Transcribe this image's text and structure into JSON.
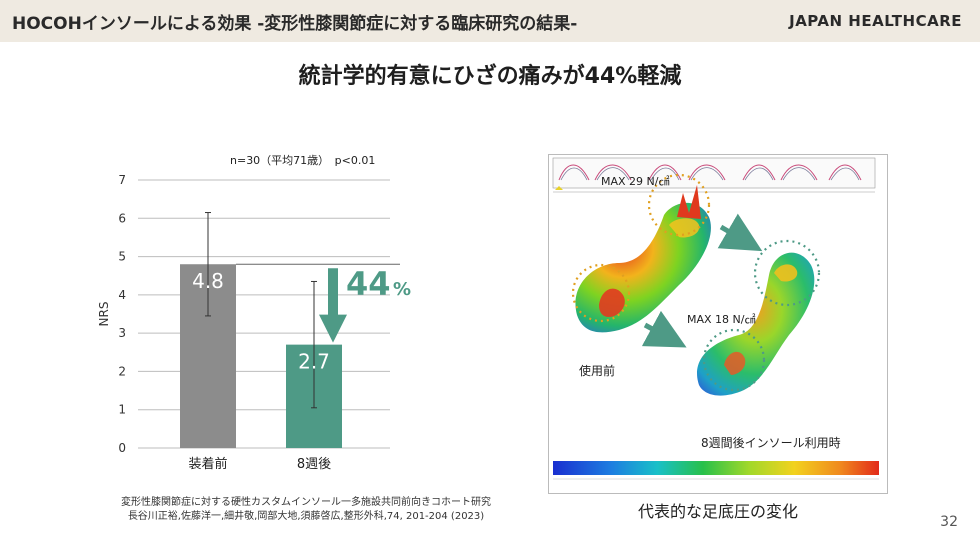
{
  "header": {
    "title": "HOCOHインソールによる効果 -変形性膝関節症に対する臨床研究の結果-",
    "brand": "JAPAN HEALTHCARE"
  },
  "headline": "統計学的有意にひざの痛みが44%軽減",
  "chart_data": {
    "type": "bar",
    "annotation": "n=30（平均71歳）　p<0.01",
    "ylabel": "NRS",
    "ylim": [
      0,
      7
    ],
    "yticks": [
      0,
      1,
      2,
      3,
      4,
      5,
      6,
      7
    ],
    "categories": [
      "装着前",
      "8週後"
    ],
    "values": [
      4.8,
      2.7
    ],
    "value_labels": [
      "4.8",
      "2.7"
    ],
    "error_low": [
      3.45,
      1.05
    ],
    "error_high": [
      6.15,
      4.35
    ],
    "bar_colors": [
      "#8c8c8c",
      "#4e9a86"
    ],
    "reduction_label": "44",
    "reduction_unit": "%",
    "accent": "#4e9a86",
    "grid": true
  },
  "citation": {
    "line1": "変形性膝関節症に対する硬性カスタムインソール一多施設共同前向きコホート研究",
    "line2": "長谷川正裕,佐藤洋一,細井敬,岡部大地,須藤啓広,整形外科,74, 201-204 (2023)"
  },
  "pressure": {
    "max_before": "MAX  29 N/㎠",
    "max_after": "MAX  18 N/㎠",
    "label_before": "使用前",
    "label_after": "8週間後インソール利用時"
  },
  "caption": "代表的な足底圧の変化",
  "page_number": "32"
}
